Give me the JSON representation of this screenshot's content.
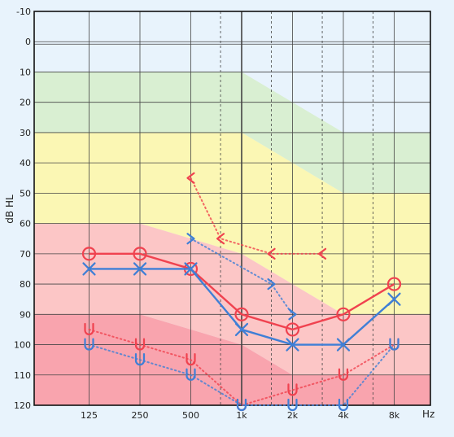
{
  "chart_data": {
    "type": "line",
    "title": "",
    "xlabel": "Hz",
    "ylabel": "dB HL",
    "ylim": [
      -10,
      120
    ],
    "y_reversed": true,
    "y_ticks": [
      "-10",
      "0",
      "10",
      "20",
      "30",
      "40",
      "50",
      "60",
      "70",
      "80",
      "90",
      "100",
      "110",
      "120"
    ],
    "x_ticks": [
      "125",
      "250",
      "500",
      "1k",
      "2k",
      "4k",
      "8k"
    ],
    "x_tick_hz": [
      125,
      250,
      500,
      1000,
      2000,
      4000,
      8000
    ],
    "grid": true,
    "colors": {
      "background": "#e8f3fc",
      "right": "#f0424f",
      "left": "#3f7fd6",
      "normal": "#d9efd2",
      "mild": "#fbf7b4",
      "moderate": "#fcc6c6",
      "severe": "#f9a4ae",
      "grid": "#444444"
    },
    "zones": [
      {
        "color": "normal",
        "top": [
          [
            125,
            10
          ],
          [
            1000,
            10
          ],
          [
            4000,
            30
          ],
          [
            8000,
            30
          ]
        ],
        "bottom": [
          [
            125,
            30
          ],
          [
            1000,
            30
          ],
          [
            4000,
            50
          ],
          [
            8000,
            50
          ]
        ]
      },
      {
        "color": "mild",
        "top": [
          [
            125,
            30
          ],
          [
            1000,
            30
          ],
          [
            4000,
            50
          ],
          [
            8000,
            50
          ]
        ],
        "bottom": [
          [
            125,
            60
          ],
          [
            250,
            60
          ],
          [
            1000,
            70
          ],
          [
            4000,
            90
          ],
          [
            8000,
            90
          ]
        ]
      },
      {
        "color": "moderate",
        "top": [
          [
            125,
            60
          ],
          [
            250,
            60
          ],
          [
            1000,
            70
          ],
          [
            4000,
            90
          ],
          [
            8000,
            90
          ]
        ],
        "bottom": [
          [
            125,
            90
          ],
          [
            250,
            90
          ],
          [
            1000,
            100
          ],
          [
            2000,
            110
          ],
          [
            8000,
            110
          ]
        ]
      },
      {
        "color": "severe",
        "top": [
          [
            125,
            90
          ],
          [
            250,
            90
          ],
          [
            1000,
            100
          ],
          [
            2000,
            110
          ],
          [
            8000,
            110
          ]
        ],
        "bottom": [
          [
            125,
            120
          ],
          [
            8000,
            120
          ]
        ]
      }
    ],
    "series": [
      {
        "color": "right",
        "symbol": "circle",
        "style": "solid",
        "points": [
          [
            125,
            70
          ],
          [
            250,
            70
          ],
          [
            500,
            75
          ],
          [
            1000,
            90
          ],
          [
            2000,
            95
          ],
          [
            4000,
            90
          ],
          [
            8000,
            80
          ]
        ]
      },
      {
        "color": "left",
        "symbol": "cross",
        "style": "solid",
        "points": [
          [
            125,
            75
          ],
          [
            250,
            75
          ],
          [
            500,
            75
          ],
          [
            1000,
            95
          ],
          [
            2000,
            100
          ],
          [
            4000,
            100
          ],
          [
            8000,
            85
          ]
        ]
      },
      {
        "color": "right",
        "symbol": "bone-right",
        "style": "dotted",
        "points": [
          [
            125,
            95
          ],
          [
            250,
            100
          ],
          [
            500,
            105
          ],
          [
            1000,
            120
          ],
          [
            2000,
            115
          ],
          [
            4000,
            110
          ],
          [
            8000,
            100
          ]
        ]
      },
      {
        "color": "left",
        "symbol": "bone-left",
        "style": "dotted",
        "points": [
          [
            125,
            100
          ],
          [
            250,
            105
          ],
          [
            500,
            110
          ],
          [
            1000,
            120
          ],
          [
            2000,
            120
          ],
          [
            4000,
            120
          ],
          [
            8000,
            100
          ]
        ]
      },
      {
        "color": "right",
        "symbol": "lt",
        "style": "dotted",
        "points": [
          [
            500,
            45
          ],
          [
            750,
            65
          ],
          [
            1500,
            70
          ],
          [
            3000,
            70
          ]
        ]
      },
      {
        "color": "left",
        "symbol": "gt",
        "style": "dotted",
        "points": [
          [
            500,
            65
          ],
          [
            1500,
            80
          ],
          [
            2000,
            90
          ]
        ]
      }
    ]
  }
}
